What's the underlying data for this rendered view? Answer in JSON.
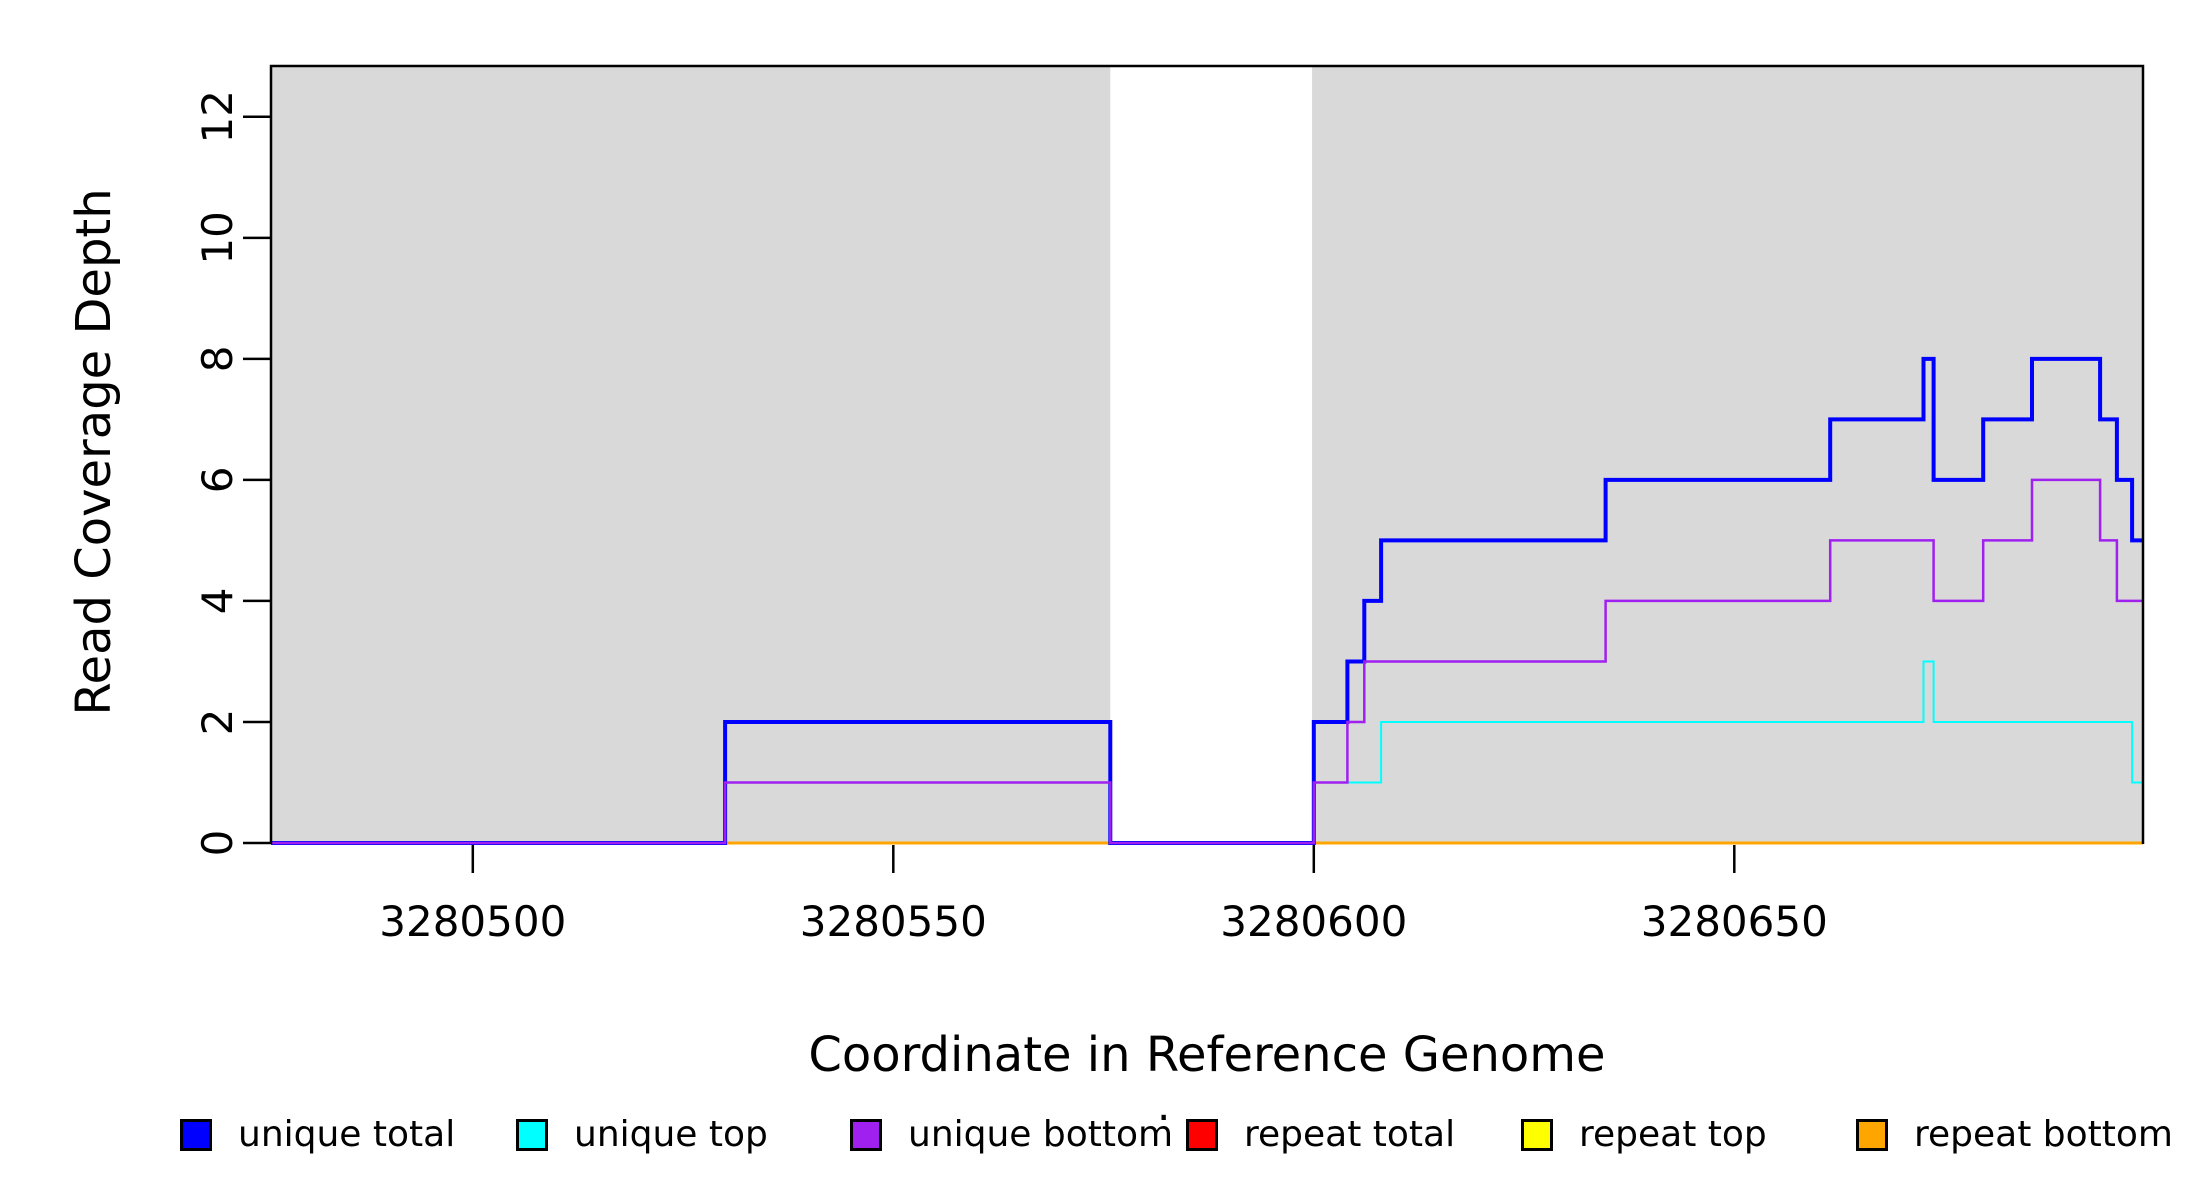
{
  "chart_data": {
    "type": "line",
    "subtype": "step-coverage",
    "title": "",
    "xlabel": "Coordinate in Reference Genome",
    "ylabel": "Read Coverage Depth",
    "xlim": [
      3280476,
      3280698.6
    ],
    "ylim": [
      0,
      12.84
    ],
    "xticks": [
      3280500,
      3280550,
      3280600,
      3280650
    ],
    "yticks": [
      0,
      2,
      4,
      6,
      8,
      10,
      12
    ],
    "grid": "off",
    "background_regions": {
      "color": "#D9D9D9",
      "intervals": [
        [
          3280476,
          3280575.8
        ],
        [
          3280599.8,
          3280698.6
        ]
      ]
    },
    "draw_order": [
      "repeat total",
      "repeat top",
      "repeat bottom",
      "unique total",
      "unique top",
      "unique bottom"
    ],
    "series": [
      {
        "name": "unique total",
        "color": "#0000FF",
        "line_width": 4,
        "segments": [
          [
            3280476,
            3280530,
            0
          ],
          [
            3280530,
            3280575.8,
            2
          ],
          [
            3280575.8,
            3280600,
            0
          ],
          [
            3280600,
            3280604,
            2
          ],
          [
            3280604,
            3280606,
            3
          ],
          [
            3280606,
            3280608,
            4
          ],
          [
            3280608,
            3280634.7,
            5
          ],
          [
            3280634.7,
            3280661.4,
            6
          ],
          [
            3280661.4,
            3280672.5,
            7
          ],
          [
            3280672.5,
            3280673.7,
            8
          ],
          [
            3280673.7,
            3280679.6,
            6
          ],
          [
            3280679.6,
            3280685.4,
            7
          ],
          [
            3280685.4,
            3280693.5,
            8
          ],
          [
            3280693.5,
            3280695.5,
            7
          ],
          [
            3280695.5,
            3280697.3,
            6
          ],
          [
            3280697.3,
            3280698.6,
            5
          ]
        ]
      },
      {
        "name": "unique top",
        "color": "#00FFFF",
        "line_width": 2,
        "segments": [
          [
            3280476,
            3280530,
            0
          ],
          [
            3280530,
            3280575.8,
            1
          ],
          [
            3280575.8,
            3280600,
            0
          ],
          [
            3280600,
            3280608,
            1
          ],
          [
            3280608,
            3280672.5,
            2
          ],
          [
            3280672.5,
            3280673.7,
            3
          ],
          [
            3280673.7,
            3280697.3,
            2
          ],
          [
            3280697.3,
            3280698.6,
            1
          ]
        ]
      },
      {
        "name": "unique bottom",
        "color": "#A020F0",
        "line_width": 2.5,
        "segments": [
          [
            3280476,
            3280530,
            0
          ],
          [
            3280530,
            3280575.8,
            1
          ],
          [
            3280575.8,
            3280600,
            0
          ],
          [
            3280600,
            3280604,
            1
          ],
          [
            3280604,
            3280606,
            2
          ],
          [
            3280606,
            3280634.7,
            3
          ],
          [
            3280634.7,
            3280661.4,
            4
          ],
          [
            3280661.4,
            3280673.7,
            5
          ],
          [
            3280673.7,
            3280679.6,
            4
          ],
          [
            3280679.6,
            3280685.4,
            5
          ],
          [
            3280685.4,
            3280693.5,
            6
          ],
          [
            3280693.5,
            3280695.5,
            5
          ],
          [
            3280695.5,
            3280698.6,
            4
          ]
        ]
      },
      {
        "name": "repeat total",
        "color": "#FF0000",
        "line_width": 3,
        "segments": [
          [
            3280476,
            3280698.6,
            0
          ]
        ]
      },
      {
        "name": "repeat top",
        "color": "#FFFF00",
        "line_width": 3,
        "segments": [
          [
            3280476,
            3280698.6,
            0
          ]
        ]
      },
      {
        "name": "repeat bottom",
        "color": "#FFA500",
        "line_width": 3,
        "segments": [
          [
            3280476,
            3280698.6,
            0
          ]
        ]
      }
    ],
    "legend": [
      {
        "label": "unique total",
        "color": "#0000FF"
      },
      {
        "label": "unique top",
        "color": "#00FFFF"
      },
      {
        "label": "unique bottom",
        "color": "#A020F0"
      },
      {
        "label": "repeat total",
        "color": "#FF0000"
      },
      {
        "label": "repeat top",
        "color": "#FFFF00"
      },
      {
        "label": "repeat bottom",
        "color": "#FFA500"
      }
    ],
    "legend_position": "bottom",
    "legend_dot": "."
  }
}
